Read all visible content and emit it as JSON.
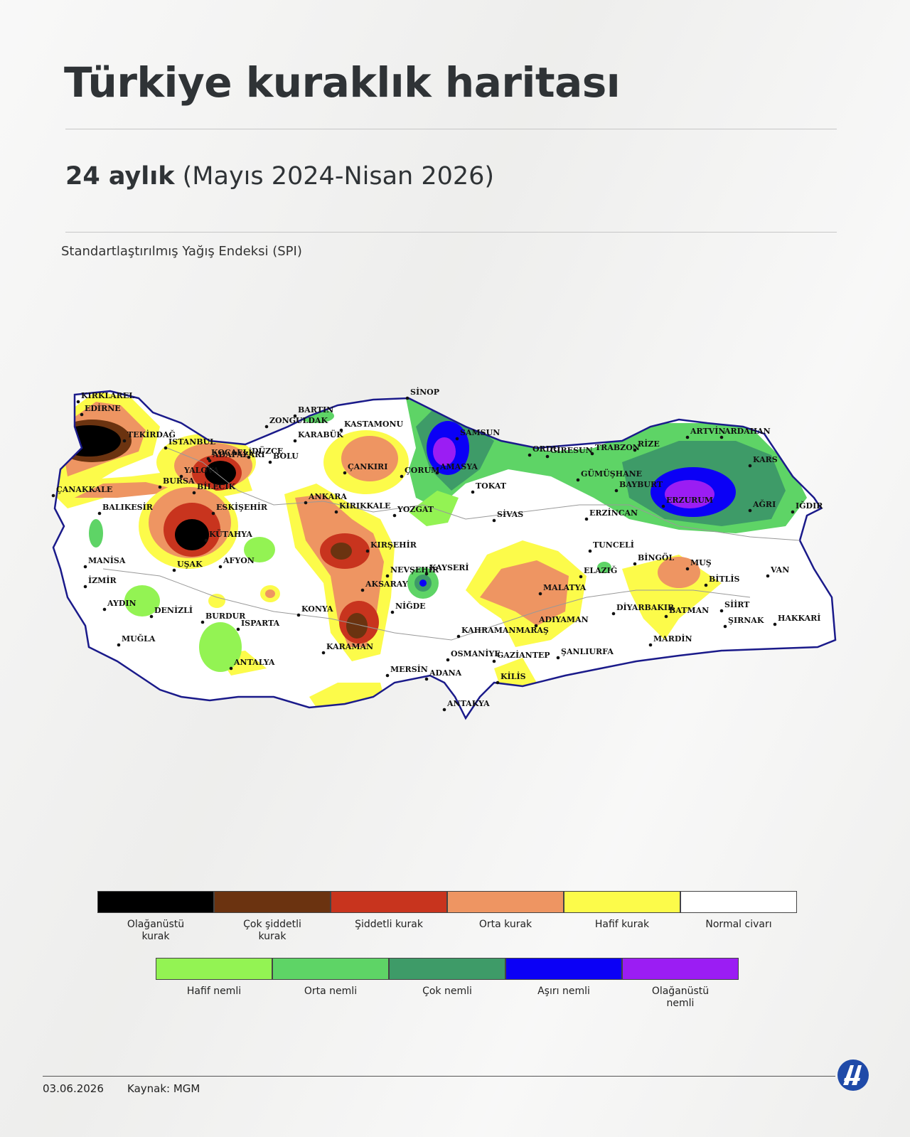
{
  "header": {
    "title": "Türkiye kuraklık haritası",
    "subtitle_bold": "24 aylık",
    "subtitle_rest": " (Mayıs 2024-Nisan 2026)",
    "index_label": "Standartlaştırılmış Yağış Endeksi (SPI)"
  },
  "map": {
    "cities": [
      "KIRKLAREL",
      "EDİRNE",
      "TEKİRDAĞ",
      "İSTANBUL",
      "KOCAELİ",
      "ADAPAZARI",
      "DÜZCE",
      "BOLU",
      "YALOVA",
      "BURSA",
      "BİLECİK",
      "ÇANAKKALE",
      "BALIKESİR",
      "ESKİŞEHİR",
      "KÜTAHYA",
      "MANİSA",
      "İZMİR",
      "UŞAK",
      "AFYON",
      "AYDIN",
      "DENİZLİ",
      "MUĞLA",
      "BURDUR",
      "ISPARTA",
      "ANTALYA",
      "BARTIN",
      "ZONGULDAK",
      "KARABÜK",
      "KASTAMONU",
      "ÇANKIRI",
      "ANKARA",
      "KIRIKKALE",
      "KIRŞEHİR",
      "AKSARAY",
      "KONYA",
      "KARAMAN",
      "NEVŞEHİR",
      "NİĞDE",
      "SİNOP",
      "SAMSUN",
      "ÇORUM",
      "AMASYA",
      "TOKAT",
      "YOZGAT",
      "SİVAS",
      "KAYSERİ",
      "ORDU",
      "GİRESUN",
      "TRABZON",
      "RİZE",
      "ARTVİN",
      "ARDAHAN",
      "KARS",
      "GÜMÜŞHANE",
      "BAYBURT",
      "ERZURUM",
      "AĞRI",
      "IĞDIR",
      "ERZİNCAN",
      "TUNCELİ",
      "BİNGÖL",
      "MUŞ",
      "BİTLİS",
      "VAN",
      "ELAZIĞ",
      "MALATYA",
      "DİYARBAKIR",
      "BATMAN",
      "SİİRT",
      "ŞIRNAK",
      "HAKKARİ",
      "MARDİN",
      "ADIYAMAN",
      "KAHRAMANMARAŞ",
      "OSMANİYE",
      "GAZİANTEP",
      "ŞANLIURFA",
      "KİLİS",
      "MERSİN",
      "ADANA",
      "ANTAKYA"
    ]
  },
  "legend": {
    "dry": [
      {
        "label": "Olağanüstü kurak",
        "color": "#000000"
      },
      {
        "label": "Çok şiddetli kurak",
        "color": "#6b3310"
      },
      {
        "label": "Şiddetli kurak",
        "color": "#c8341e"
      },
      {
        "label": "Orta kurak",
        "color": "#ee9562"
      },
      {
        "label": "Hafif kurak",
        "color": "#fcfb4a"
      },
      {
        "label": "Normal civarı",
        "color": "#ffffff"
      }
    ],
    "wet": [
      {
        "label": "Hafif nemli",
        "color": "#93f353"
      },
      {
        "label": "Orta nemli",
        "color": "#5ed466"
      },
      {
        "label": "Çok nemli",
        "color": "#3e9b68"
      },
      {
        "label": "Aşırı nemli",
        "color": "#0b00f6"
      },
      {
        "label": "Olağanüstü nemli",
        "color": "#9b1df3"
      }
    ]
  },
  "footer": {
    "date": "03.06.2026",
    "source": "Kaynak: MGM",
    "logo": "AA"
  }
}
